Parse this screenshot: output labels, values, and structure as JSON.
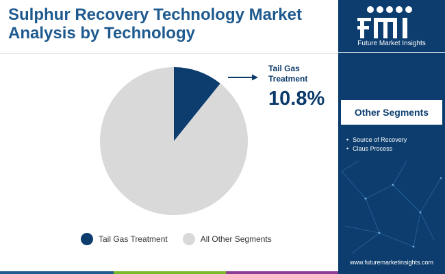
{
  "title": "Sulphur Recovery Technology Market Analysis by Technology",
  "chart_data": {
    "type": "pie",
    "slices": [
      {
        "label": "Tail Gas Treatment",
        "value": 10.8,
        "color": "#0c3d6e"
      },
      {
        "label": "All Other Segments",
        "value": 89.2,
        "color": "#d9d9d9"
      }
    ],
    "callout": {
      "label": "Tail Gas Treatment",
      "value_text": "10.8%"
    },
    "legend_position": "bottom"
  },
  "sidebar": {
    "brand_text": "Future Market Insights",
    "segments_title": "Other Segments",
    "segments": [
      "Source of Recovery",
      "Claus Process"
    ],
    "website": "www.futuremarketinsights.com"
  },
  "colors": {
    "title": "#1f5a8f",
    "accent": "#0c3d6e",
    "bottom_bar": [
      "#1f5a8f",
      "#7ab929",
      "#8e3d97"
    ]
  }
}
